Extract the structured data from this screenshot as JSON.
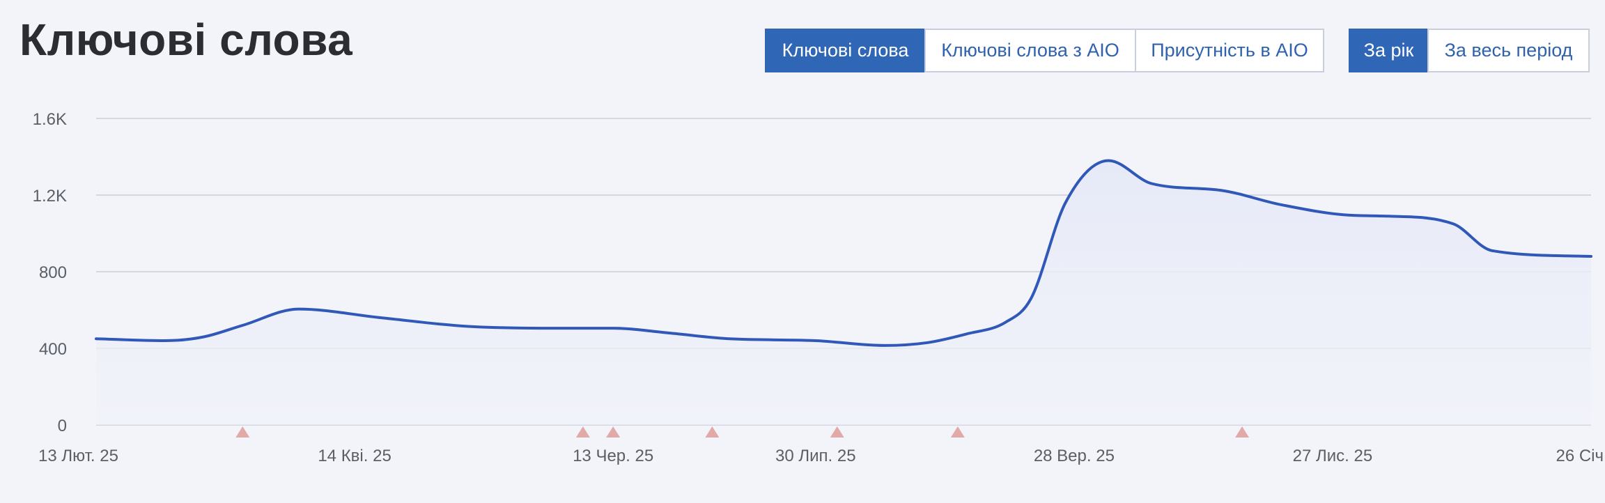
{
  "header": {
    "title": "Ключові слова"
  },
  "metric_tabs": [
    {
      "label": "Ключові слова",
      "active": true
    },
    {
      "label": "Ключові слова з AIO",
      "active": false
    },
    {
      "label": "Присутність в AIO",
      "active": false
    }
  ],
  "period_tabs": [
    {
      "label": "За рік",
      "active": true
    },
    {
      "label": "За весь період",
      "active": false
    }
  ],
  "colors": {
    "accent": "#2f66b6",
    "line": "#2f58b8",
    "marker": "#e2a9a9",
    "grid": "#c9ccd8"
  },
  "chart_data": {
    "type": "line",
    "x_tick_labels": [
      "13 Лют. 25",
      "14 Кві. 25",
      "13 Чер. 25",
      "30 Лип. 25",
      "28 Вер. 25",
      "27 Лис. 25",
      "26 Січ"
    ],
    "x_tick_dates": [
      "2025-02-13",
      "2025-04-14",
      "2025-06-13",
      "2025-07-30",
      "2025-09-28",
      "2025-11-27",
      "2026-01-26"
    ],
    "y_tick_labels": [
      "0",
      "400",
      "800",
      "1.2K",
      "1.6K"
    ],
    "y_ticks": [
      0,
      400,
      800,
      1200,
      1600
    ],
    "ylim": [
      0,
      1600
    ],
    "xlim": [
      "2025-02-13",
      "2026-01-26"
    ],
    "grid": true,
    "series": [
      {
        "x": [
          "2025-02-13",
          "2025-03-01",
          "2025-03-10",
          "2025-03-19",
          "2025-04-01",
          "2025-04-20",
          "2025-05-10",
          "2025-05-30",
          "2025-06-13",
          "2025-06-26",
          "2025-07-10",
          "2025-07-30",
          "2025-08-15",
          "2025-08-25",
          "2025-09-03",
          "2025-09-12",
          "2025-09-18",
          "2025-09-26",
          "2025-10-06",
          "2025-10-16",
          "2025-11-01",
          "2025-11-15",
          "2025-12-01",
          "2025-12-10",
          "2025-12-25",
          "2026-01-03",
          "2026-01-26"
        ],
        "values": [
          450,
          440,
          460,
          520,
          605,
          560,
          515,
          505,
          505,
          480,
          450,
          440,
          415,
          430,
          475,
          535,
          660,
          1160,
          1380,
          1260,
          1225,
          1150,
          1095,
          1090,
          1050,
          910,
          880
        ]
      }
    ],
    "markers": [
      "2025-03-19",
      "2025-06-06",
      "2025-06-13",
      "2025-07-06",
      "2025-08-04",
      "2025-09-01",
      "2025-11-06"
    ]
  }
}
